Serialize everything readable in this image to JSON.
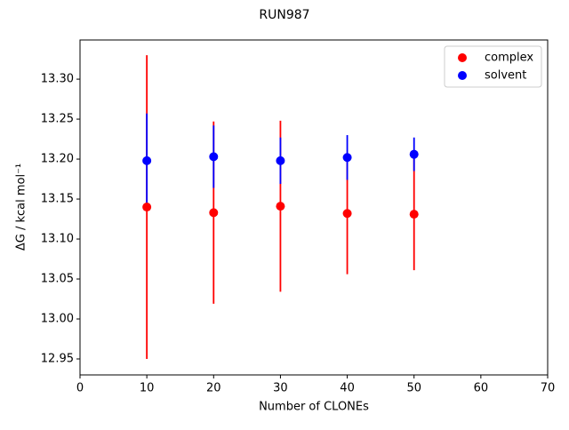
{
  "chart_data": {
    "type": "errorbar",
    "title": "RUN987",
    "x_label": "Number of CLONEs",
    "y_label": "ΔG / kcal mol⁻¹",
    "xlim": [
      0,
      70
    ],
    "xticks": [
      0,
      10,
      20,
      30,
      40,
      50,
      60,
      70
    ],
    "ylim": [
      12.93,
      13.349
    ],
    "yticks": [
      {
        "value": 12.95,
        "label": "12.95"
      },
      {
        "value": 13.0,
        "label": "13.00"
      },
      {
        "value": 13.05,
        "label": "13.05"
      },
      {
        "value": 13.1,
        "label": "13.10"
      },
      {
        "value": 13.15,
        "label": "13.15"
      },
      {
        "value": 13.2,
        "label": "13.20"
      },
      {
        "value": 13.25,
        "label": "13.25"
      },
      {
        "value": 13.3,
        "label": "13.30"
      }
    ],
    "legend": "upper right",
    "series": [
      {
        "name": "complex",
        "color": "#ff0000",
        "x": [
          10,
          20,
          30,
          40,
          50
        ],
        "values": [
          13.14,
          13.133,
          13.141,
          13.132,
          13.131
        ],
        "errors": [
          0.19,
          0.114,
          0.107,
          0.076,
          0.07
        ]
      },
      {
        "name": "solvent",
        "color": "#0000ff",
        "x": [
          10,
          20,
          30,
          40,
          50
        ],
        "values": [
          13.198,
          13.203,
          13.198,
          13.202,
          13.206
        ],
        "errors": [
          0.059,
          0.039,
          0.029,
          0.028,
          0.021
        ]
      }
    ]
  }
}
